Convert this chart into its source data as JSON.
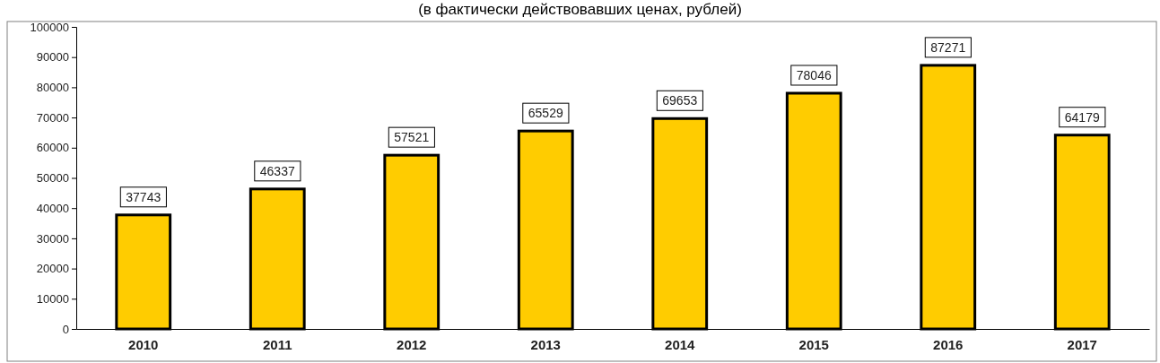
{
  "chart_data": {
    "type": "bar",
    "subtitle": "(в фактически действовавших ценах, рублей)",
    "categories": [
      "2010",
      "2011",
      "2012",
      "2013",
      "2014",
      "2015",
      "2016",
      "2017"
    ],
    "values": [
      37743,
      46337,
      57521,
      65529,
      69653,
      78046,
      87271,
      64179
    ],
    "color": "#ffcc00",
    "ylim": [
      0,
      100000
    ],
    "yticks": [
      0,
      10000,
      20000,
      30000,
      40000,
      50000,
      60000,
      70000,
      80000,
      90000,
      100000
    ],
    "data_labels": true
  }
}
